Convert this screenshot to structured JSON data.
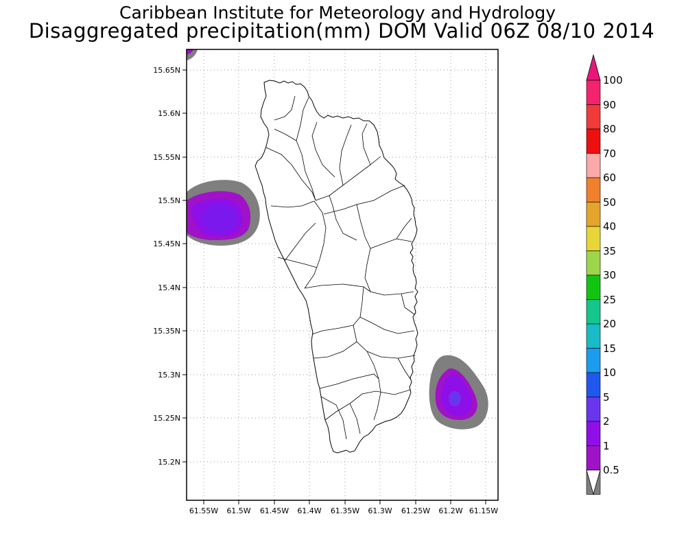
{
  "header": {
    "title_line1": "Caribbean Institute for Meteorology and Hydrology",
    "title_line2": "Disaggregated precipitation(mm) DOM Valid 06Z 08/10 2014"
  },
  "map": {
    "region": "Dominica",
    "lat_ticks": [
      "15.65N",
      "15.6N",
      "15.55N",
      "15.5N",
      "15.45N",
      "15.4N",
      "15.35N",
      "15.3N",
      "15.25N",
      "15.2N"
    ],
    "lon_ticks": [
      "61.55W",
      "61.5W",
      "61.45W",
      "61.4W",
      "61.35W",
      "61.3W",
      "61.25W",
      "61.2W",
      "61.15W"
    ],
    "grid": true,
    "precip_areas": [
      {
        "location": "west of island",
        "levels_mm": [
          "0.5",
          "1",
          "2",
          "5"
        ]
      },
      {
        "location": "south-east of island",
        "levels_mm": [
          "0.5",
          "1",
          "2",
          "5"
        ]
      },
      {
        "location": "top-left corner",
        "levels_mm": [
          "0.5",
          "1"
        ]
      }
    ]
  },
  "colorbar": {
    "labels": [
      "100",
      "90",
      "80",
      "70",
      "60",
      "50",
      "40",
      "35",
      "30",
      "25",
      "20",
      "15",
      "10",
      "5",
      "2",
      "1",
      "0.5"
    ],
    "colors": [
      "#f5226e",
      "#f23a3a",
      "#ee0f0f",
      "#f9a9a9",
      "#f0802b",
      "#e5a52a",
      "#e8d637",
      "#9dd64a",
      "#11c411",
      "#14c68b",
      "#18bcc6",
      "#1b9cef",
      "#1f58ef",
      "#6b35f0",
      "#8e0fe8",
      "#a012c8",
      "#7f7f7f"
    ]
  }
}
